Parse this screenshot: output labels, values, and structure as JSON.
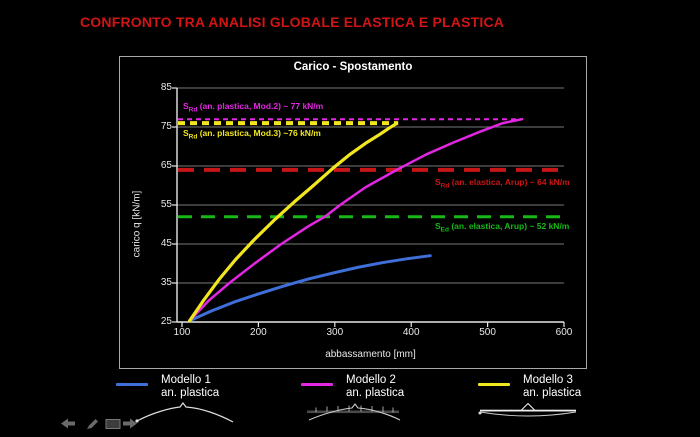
{
  "slide_title": "CONFRONTO TRA ANALISI GLOBALE ELASTICA E PLASTICA",
  "colors": {
    "slide_title": "#d21414",
    "background": "#000000",
    "panel_border": "#a8a8a8",
    "grid": "#777777",
    "axis": "#e8e8e8",
    "text": "#ffffff"
  },
  "chart_data": {
    "type": "line",
    "title": "Carico - Spostamento",
    "xlabel": "abbassamento [mm]",
    "ylabel": "carico q [kN/m]",
    "xlim": [
      100,
      600
    ],
    "ylim": [
      25,
      85
    ],
    "xticks": [
      100,
      200,
      300,
      400,
      500,
      600
    ],
    "yticks": [
      25,
      35,
      45,
      55,
      65,
      75,
      85
    ],
    "gridlines": [
      35,
      45,
      55,
      65,
      75,
      85
    ],
    "grid": "horizontal",
    "legend_position": "bottom",
    "series": [
      {
        "name": "Modello 1",
        "analysis": "an. plastica",
        "color": "#3f6fd8",
        "stroke_width": 3,
        "points": [
          [
            110,
            25.3
          ],
          [
            138,
            27.8
          ],
          [
            168,
            30.1
          ],
          [
            200,
            32.2
          ],
          [
            233,
            34.2
          ],
          [
            265,
            36
          ],
          [
            298,
            37.6
          ],
          [
            330,
            39
          ],
          [
            362,
            40.2
          ],
          [
            394,
            41.2
          ],
          [
            425,
            42
          ]
        ]
      },
      {
        "name": "Modello 2",
        "analysis": "an. plastica",
        "color": "#e226e2",
        "stroke_width": 2.5,
        "points": [
          [
            110,
            25.3
          ],
          [
            135,
            30.5
          ],
          [
            162,
            35
          ],
          [
            195,
            40
          ],
          [
            230,
            45
          ],
          [
            265,
            49.5
          ],
          [
            287,
            52
          ],
          [
            307,
            55
          ],
          [
            340,
            59.5
          ],
          [
            381,
            64
          ],
          [
            420,
            68
          ],
          [
            455,
            71
          ],
          [
            490,
            73.8
          ],
          [
            520,
            76
          ],
          [
            545,
            77
          ]
        ]
      },
      {
        "name": "Modello 3",
        "analysis": "an. plastica",
        "color": "#f2e71e",
        "stroke_width": 3.2,
        "points": [
          [
            110,
            25.3
          ],
          [
            128,
            30.5
          ],
          [
            148,
            35.8
          ],
          [
            170,
            41
          ],
          [
            194,
            46
          ],
          [
            220,
            51
          ],
          [
            247,
            55.8
          ],
          [
            272,
            60
          ],
          [
            298,
            64.5
          ],
          [
            320,
            68
          ],
          [
            340,
            70.8
          ],
          [
            358,
            73
          ],
          [
            371,
            74.7
          ],
          [
            380,
            75.8
          ]
        ]
      }
    ],
    "reference_lines": [
      {
        "value": 77,
        "x_end": 545,
        "color": "#e226e2",
        "width": 2,
        "dash": "5,4",
        "label_prefix": "S",
        "label_sub": "Rd",
        "label_text": " (an. plastica, Mod.2) ~ 77 kN/m"
      },
      {
        "value": 76,
        "x_end": 383,
        "color": "#f2e71e",
        "width": 4,
        "dash": "7,5",
        "label_prefix": "S",
        "label_sub": "Rd",
        "label_text": " (an. plastica, Mod.3) ~76 kN/m"
      },
      {
        "value": 64,
        "x_end": 600,
        "color": "#c81616",
        "width": 4,
        "dash": "16,10",
        "label_prefix": "S",
        "label_sub": "Rd",
        "label_text": " (an. elastica, Arup) ~ 64 kN/m"
      },
      {
        "value": 52,
        "x_end": 600,
        "color": "#18b818",
        "width": 3,
        "dash": "14,9",
        "label_prefix": "S",
        "label_sub": "Ed",
        "label_text": " (an. elastica, Arup) ~ 52 kN/m"
      }
    ]
  },
  "toolbar": {
    "icons": [
      "previous-slide-icon",
      "pen-icon",
      "slide-frame-icon",
      "next-slide-icon"
    ]
  }
}
